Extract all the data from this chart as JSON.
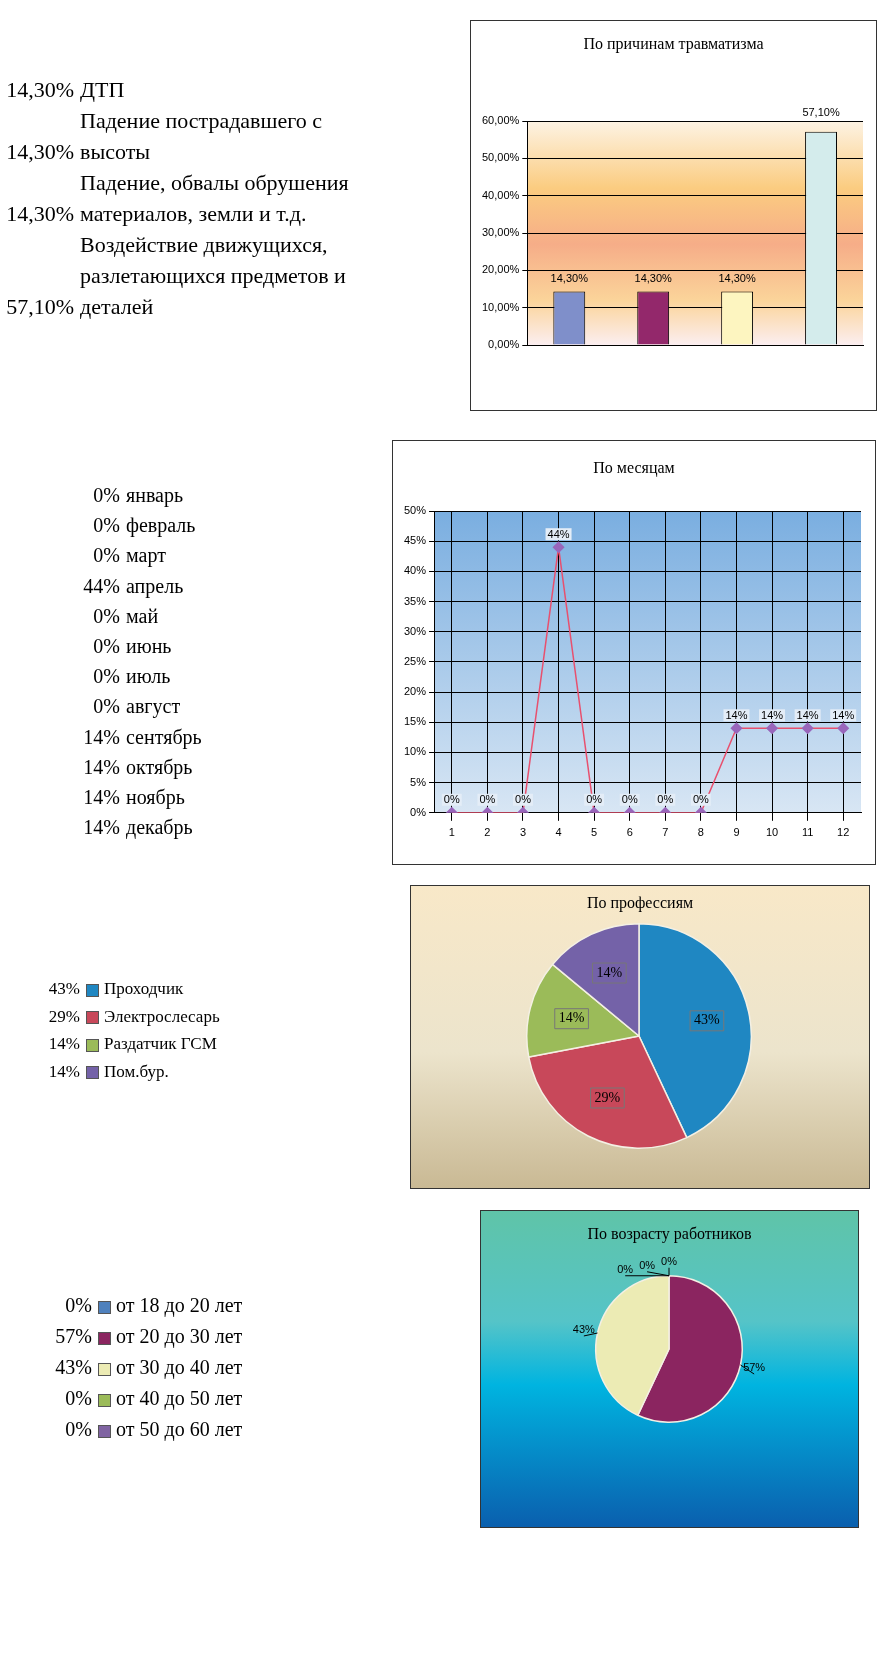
{
  "chart_data": [
    {
      "type": "bar",
      "title": "По причинам травматизма",
      "categories": [
        null,
        null,
        null,
        null
      ],
      "annotations": [
        "ДТП",
        "Падение пострадавшего с высоты",
        "Падение, обвалы обрушения материалов, земли и т.д.",
        "Воздействие движущихся, разлетающихся предметов и деталей"
      ],
      "values": [
        14.3,
        14.3,
        14.3,
        57.1
      ],
      "colors": [
        "#7f8fca",
        "#93286b",
        "#fdf5c0",
        "#d4ecec"
      ],
      "value_labels": [
        "14,30%",
        "14,30%",
        "14,30%",
        "57,10%"
      ],
      "ylim": [
        0,
        60
      ],
      "yticks": [
        {
          "value": 0,
          "label": "0,00%"
        },
        {
          "value": 10,
          "label": "10,00%"
        },
        {
          "value": 20,
          "label": "20,00%"
        },
        {
          "value": 30,
          "label": "30,00%"
        },
        {
          "value": 40,
          "label": "40,00%"
        },
        {
          "value": 50,
          "label": "50,00%"
        },
        {
          "value": 60,
          "label": "60,00%"
        }
      ],
      "grid": "y",
      "tick_labels": "y"
    },
    {
      "type": "line",
      "title": "По месяцам",
      "x": [
        1,
        2,
        3,
        4,
        5,
        6,
        7,
        8,
        9,
        10,
        11,
        12
      ],
      "xlim": [
        0.5,
        12.5
      ],
      "xticks": [
        1,
        2,
        3,
        4,
        5,
        6,
        7,
        8,
        9,
        10,
        11,
        12
      ],
      "series": [
        {
          "color": "#e8506e",
          "colors": [
            "#9966bb",
            "#9966bb",
            "#9966bb",
            "#9966bb",
            "#9966bb",
            "#9966bb",
            "#9966bb",
            "#9966bb",
            "#9966bb",
            "#9966bb",
            "#9966bb",
            "#9966bb"
          ],
          "values": [
            0,
            0,
            0,
            44,
            0,
            0,
            0,
            0,
            14,
            14,
            14,
            14
          ],
          "value_labels": [
            "0%",
            "0%",
            "0%",
            "44%",
            "0%",
            "0%",
            "0%",
            "0%",
            "14%",
            "14%",
            "14%",
            "14%"
          ]
        }
      ],
      "ylim": [
        0,
        50
      ],
      "yticks": [
        {
          "value": 0,
          "label": "0%"
        },
        {
          "value": 5,
          "label": "5%"
        },
        {
          "value": 10,
          "label": "10%"
        },
        {
          "value": 15,
          "label": "15%"
        },
        {
          "value": 20,
          "label": "20%"
        },
        {
          "value": 25,
          "label": "25%"
        },
        {
          "value": 30,
          "label": "30%"
        },
        {
          "value": 35,
          "label": "35%"
        },
        {
          "value": 40,
          "label": "40%"
        },
        {
          "value": 45,
          "label": "45%"
        },
        {
          "value": 50,
          "label": "50%"
        }
      ],
      "grid": true,
      "marker": "diamond",
      "annotations": [
        "январь",
        "февраль",
        "март",
        "апрель",
        "май",
        "июнь",
        "июль",
        "август",
        "сентябрь",
        "октябрь",
        "ноябрь",
        "декабрь"
      ]
    },
    {
      "type": "pie",
      "title": "По профессиям",
      "categories": [
        "Проходчик",
        "Электрослесарь",
        "Раздатчик ГСМ",
        "Пом.бур."
      ],
      "values": [
        43,
        29,
        14,
        14
      ],
      "colors": [
        "#1f87c2",
        "#c8485a",
        "#9bbb59",
        "#7462a8"
      ],
      "legend": "left",
      "value_labels": [
        "43%",
        "29%",
        "14%",
        "14%"
      ]
    },
    {
      "type": "pie",
      "title": "По возрасту работников",
      "categories": [
        "от 18 до 20 лет",
        "от 20 до 30 лет",
        "от 30 до 40 лет",
        "от 40 до 50 лет",
        "от 50 до 60 лет"
      ],
      "values": [
        0,
        57,
        43,
        0,
        0
      ],
      "colors": [
        "#4f81bd",
        "#8b2560",
        "#ecebb4",
        "#9bbb59",
        "#8064a2"
      ],
      "legend": "left",
      "value_labels": [
        "0%",
        "57%",
        "43%",
        "0%",
        "0%"
      ]
    }
  ]
}
